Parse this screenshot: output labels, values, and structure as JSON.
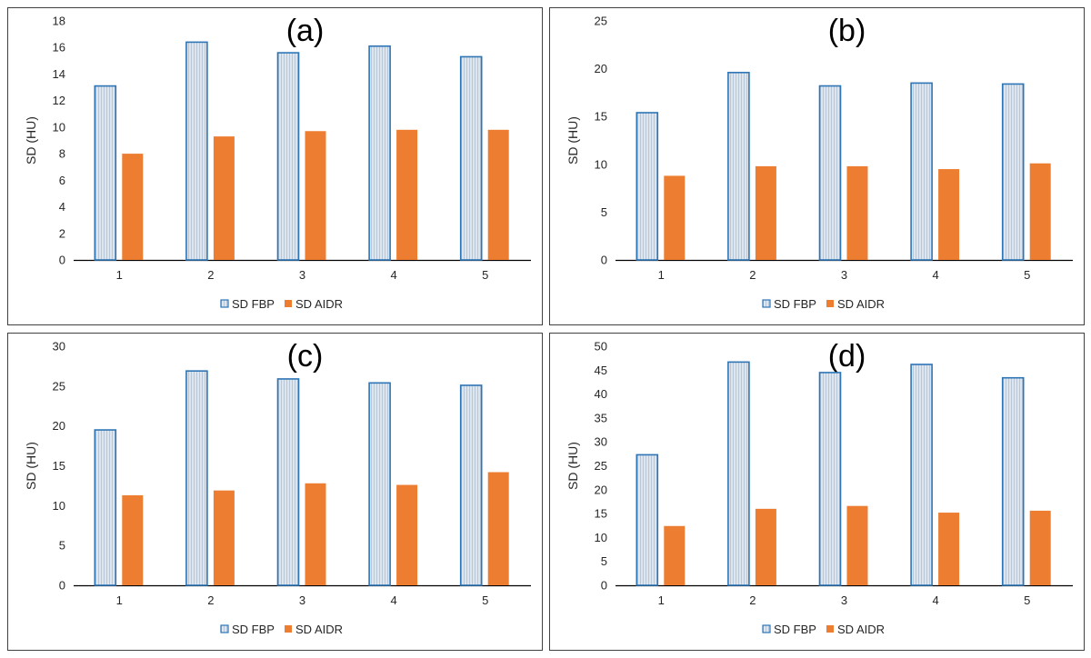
{
  "chart_data": [
    {
      "type": "bar",
      "title": "(a)",
      "ylabel": "SD (HU)",
      "categories": [
        "1",
        "2",
        "3",
        "4",
        "5"
      ],
      "ylim": [
        0,
        18
      ],
      "yticks": [
        0,
        2,
        4,
        6,
        8,
        10,
        12,
        14,
        16,
        18
      ],
      "series": [
        {
          "name": "SD FBP",
          "values": [
            13.1,
            16.4,
            15.6,
            16.1,
            15.3
          ]
        },
        {
          "name": "SD AIDR",
          "values": [
            8.0,
            9.3,
            9.7,
            9.8,
            9.8
          ]
        }
      ],
      "legend": "bottom",
      "grid": false
    },
    {
      "type": "bar",
      "title": "(b)",
      "ylabel": "SD (HU)",
      "categories": [
        "1",
        "2",
        "3",
        "4",
        "5"
      ],
      "ylim": [
        0,
        25
      ],
      "yticks": [
        0,
        5,
        10,
        15,
        20,
        25
      ],
      "series": [
        {
          "name": "SD FBP",
          "values": [
            15.4,
            19.6,
            18.2,
            18.5,
            18.4
          ]
        },
        {
          "name": "SD AIDR",
          "values": [
            8.8,
            9.8,
            9.8,
            9.5,
            10.1
          ]
        }
      ],
      "legend": "bottom",
      "grid": false
    },
    {
      "type": "bar",
      "title": "(c)",
      "ylabel": "SD (HU)",
      "categories": [
        "1",
        "2",
        "3",
        "4",
        "5"
      ],
      "ylim": [
        0,
        30
      ],
      "yticks": [
        0,
        5,
        10,
        15,
        20,
        25,
        30
      ],
      "series": [
        {
          "name": "SD FBP",
          "values": [
            19.5,
            26.9,
            25.9,
            25.4,
            25.1
          ]
        },
        {
          "name": "SD AIDR",
          "values": [
            11.3,
            11.9,
            12.8,
            12.6,
            14.2
          ]
        }
      ],
      "legend": "bottom",
      "grid": false
    },
    {
      "type": "bar",
      "title": "(d)",
      "ylabel": "SD (HU)",
      "categories": [
        "1",
        "2",
        "3",
        "4",
        "5"
      ],
      "ylim": [
        0,
        50
      ],
      "yticks": [
        0,
        5,
        10,
        15,
        20,
        25,
        30,
        35,
        40,
        45,
        50
      ],
      "series": [
        {
          "name": "SD FBP",
          "values": [
            27.3,
            46.7,
            44.5,
            46.2,
            43.4
          ]
        },
        {
          "name": "SD AIDR",
          "values": [
            12.4,
            16.0,
            16.6,
            15.2,
            15.6
          ]
        }
      ],
      "legend": "bottom",
      "grid": false
    }
  ],
  "colors": {
    "fbp_fill": "#dde6ef",
    "fbp_stripe": "#b7c7d8",
    "fbp_edge": "#2e75b6",
    "aidr": "#ed7d31",
    "axis": "#000000",
    "text": "#262626"
  }
}
